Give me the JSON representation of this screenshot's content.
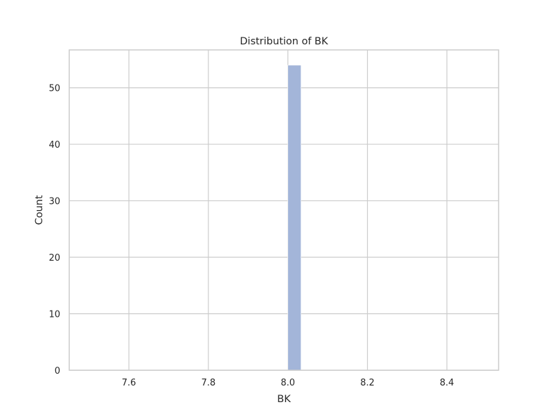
{
  "chart_data": {
    "type": "bar",
    "title": "Distribution of BK",
    "xlabel": "BK",
    "ylabel": "Count",
    "xlim": [
      7.45,
      8.53
    ],
    "ylim": [
      0,
      56.7
    ],
    "x_ticks": [
      7.6,
      7.8,
      8.0,
      8.2,
      8.4
    ],
    "x_tick_labels": [
      "7.6",
      "7.8",
      "8.0",
      "8.2",
      "8.4"
    ],
    "y_ticks": [
      0,
      10,
      20,
      30,
      40,
      50
    ],
    "y_tick_labels": [
      "0",
      "10",
      "20",
      "30",
      "40",
      "50"
    ],
    "grid": true,
    "bars": [
      {
        "x_start": 8.0,
        "x_end": 8.033,
        "value": 54
      }
    ],
    "bar_color": "#a3b5d9"
  }
}
